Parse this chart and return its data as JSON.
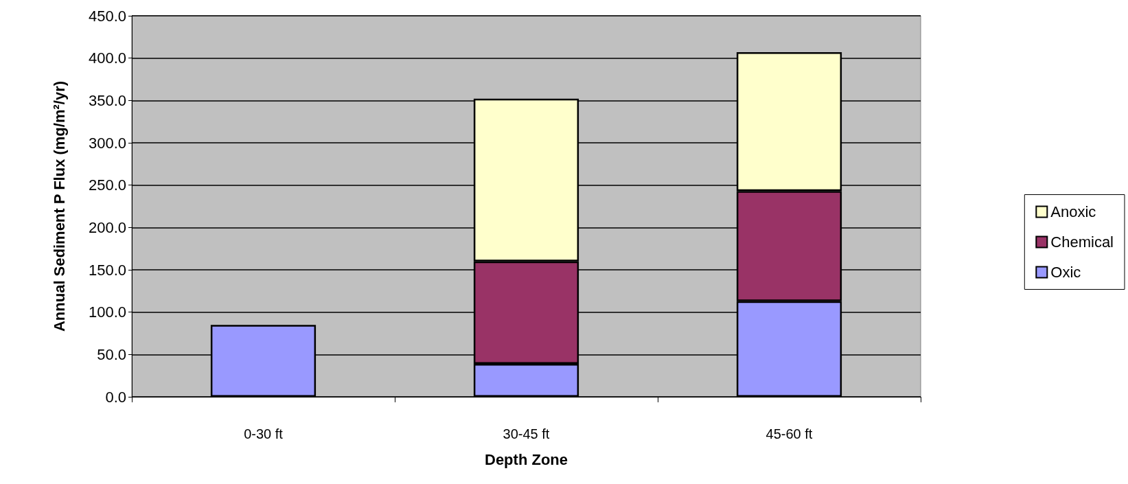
{
  "chart_data": {
    "type": "bar",
    "stacked": true,
    "xlabel": "Depth Zone",
    "ylabel": "Annual Sediment P Flux (mg/m²/yr)",
    "categories": [
      "0-30 ft",
      "30-45 ft",
      "45-60 ft"
    ],
    "series": [
      {
        "name": "Oxic",
        "color": "#9999ff",
        "values": [
          85,
          39,
          113
        ]
      },
      {
        "name": "Chemical",
        "color": "#993366",
        "values": [
          null,
          121,
          130
        ]
      },
      {
        "name": "Anoxic",
        "color": "#ffffcc",
        "values": [
          null,
          192,
          164
        ]
      }
    ],
    "ylim": [
      0,
      450
    ],
    "yticks": [
      {
        "value": 0,
        "label": "0.0"
      },
      {
        "value": 50,
        "label": "50.0"
      },
      {
        "value": 100,
        "label": "100.0"
      },
      {
        "value": 150,
        "label": "150.0"
      },
      {
        "value": 200,
        "label": "200.0"
      },
      {
        "value": 250,
        "label": "250.0"
      },
      {
        "value": 300,
        "label": "300.0"
      },
      {
        "value": 350,
        "label": "350.0"
      },
      {
        "value": 400,
        "label": "400.0"
      },
      {
        "value": 450,
        "label": "450.0"
      }
    ],
    "grid": "y",
    "legend": "right"
  }
}
